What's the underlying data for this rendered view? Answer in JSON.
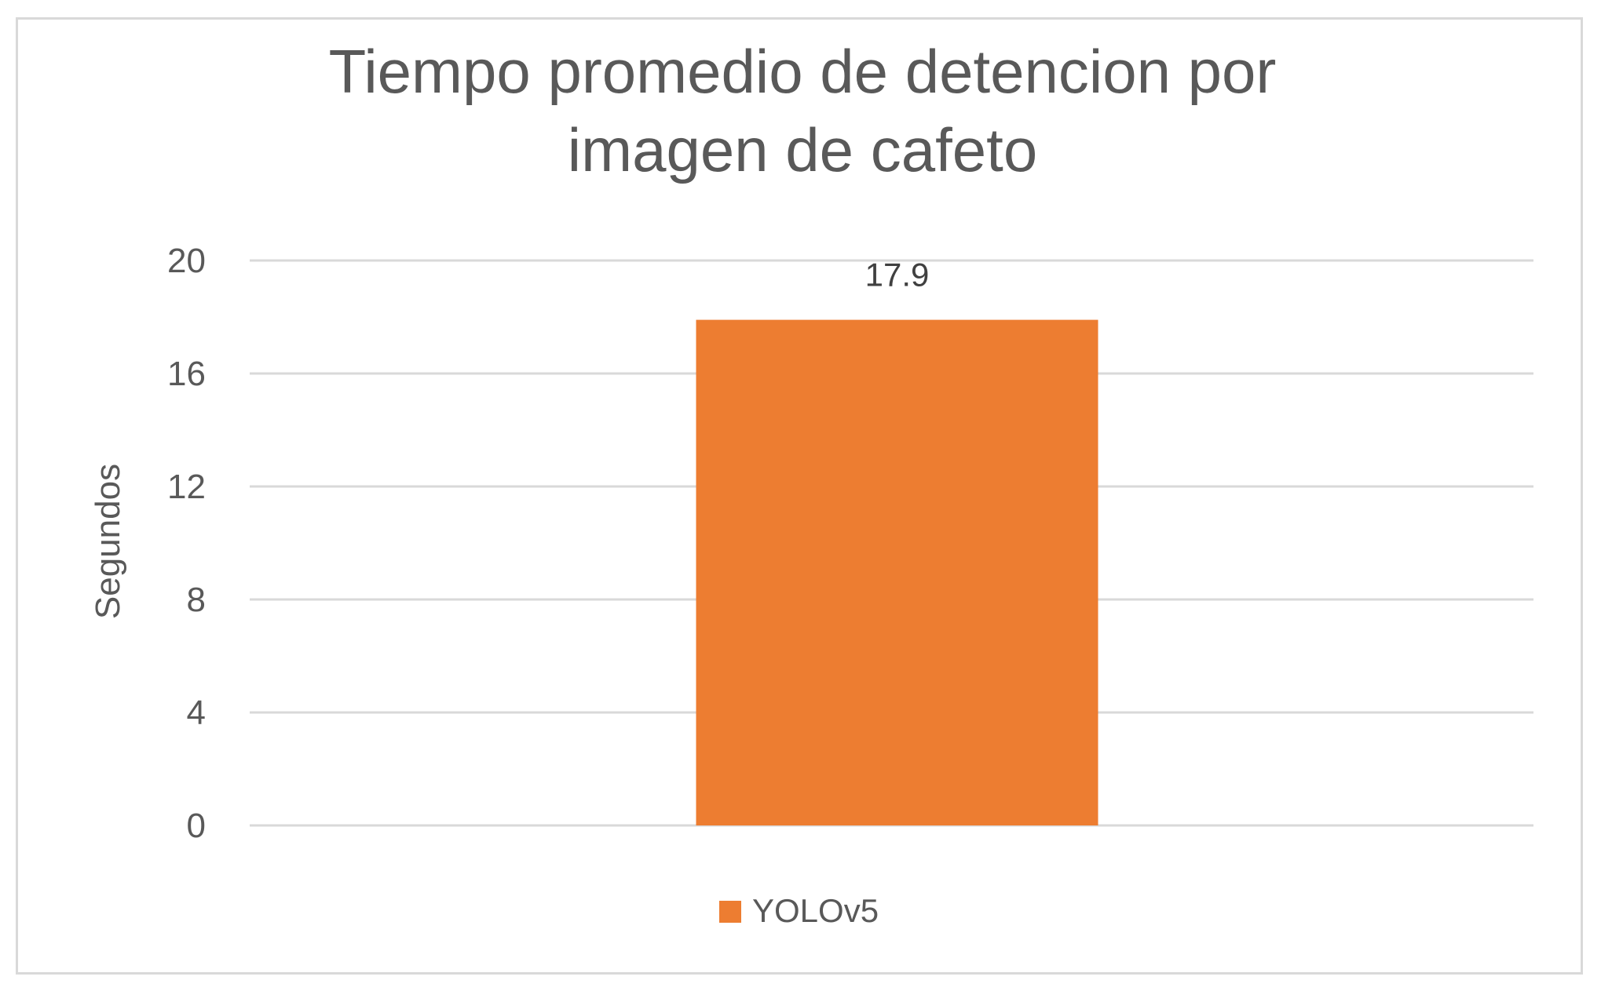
{
  "chart_data": {
    "type": "bar",
    "title_lines": [
      "Tiempo promedio de detencion por",
      "imagen de cafeto"
    ],
    "ylabel": "Segundos",
    "xlabel": "",
    "ylim": [
      0,
      20
    ],
    "yticks": [
      0,
      4,
      8,
      12,
      16,
      20
    ],
    "categories": [
      ""
    ],
    "series": [
      {
        "name": "YOLOv5",
        "values": [
          17.9
        ],
        "color": "#ED7D31",
        "data_labels": [
          "17.9"
        ]
      }
    ],
    "grid": true,
    "legend": "bottom-center"
  }
}
